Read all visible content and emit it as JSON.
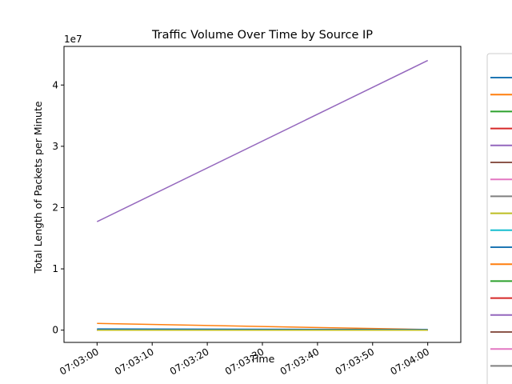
{
  "chart_data": {
    "type": "line",
    "title": "Traffic Volume Over Time by Source IP",
    "xlabel": "Time",
    "ylabel": "Total Length of Packets per Minute",
    "y_offset_label": "1e7",
    "x_ticks": [
      "07:03:00",
      "07:03:10",
      "07:03:20",
      "07:03:30",
      "07:03:40",
      "07:03:50",
      "07:04:00"
    ],
    "y_ticks": [
      "0",
      "1",
      "2",
      "3",
      "4"
    ],
    "xlim": [
      "07:02:54",
      "07:04:06"
    ],
    "ylim": [
      -0.2,
      4.63
    ],
    "y_scale_exponent": 7,
    "grid": false,
    "legend": {
      "placement": "right (partially cut off)",
      "entry_labels_visible": false
    },
    "x": [
      "07:03:00",
      "07:04:00"
    ],
    "series": [
      {
        "color": "#1f77b4",
        "values": [
          0.02,
          0.01
        ]
      },
      {
        "color": "#ff7f0e",
        "values": [
          0.11,
          0.01
        ]
      },
      {
        "color": "#2ca02c",
        "values": [
          0.0,
          0.0
        ]
      },
      {
        "color": "#d62728",
        "values": [
          0.0,
          0.0
        ]
      },
      {
        "color": "#9467bd",
        "values": [
          1.77,
          4.4
        ]
      },
      {
        "color": "#8c564b",
        "values": [
          0.0,
          0.0
        ]
      },
      {
        "color": "#e377c2",
        "values": [
          0.0,
          0.0
        ]
      },
      {
        "color": "#7f7f7f",
        "values": [
          0.0,
          0.0
        ]
      },
      {
        "color": "#bcbd22",
        "values": [
          0.0,
          0.0
        ]
      },
      {
        "color": "#17becf",
        "values": [
          0.0,
          0.0
        ]
      },
      {
        "color": "#1f77b4",
        "values": [
          0.01,
          0.01
        ]
      },
      {
        "color": "#ff7f0e",
        "values": [
          0.0,
          0.0
        ]
      },
      {
        "color": "#2ca02c",
        "values": [
          0.0,
          0.0
        ]
      },
      {
        "color": "#d62728",
        "values": [
          0.0,
          0.0
        ]
      },
      {
        "color": "#9467bd",
        "values": [
          0.0,
          0.0
        ]
      },
      {
        "color": "#8c564b",
        "values": [
          0.0,
          0.0
        ]
      },
      {
        "color": "#e377c2",
        "values": [
          0.0,
          0.0
        ]
      },
      {
        "color": "#7f7f7f",
        "values": [
          0.0,
          0.0
        ]
      },
      {
        "color": "#bcbd22",
        "values": [
          0.0,
          0.0
        ]
      }
    ]
  }
}
